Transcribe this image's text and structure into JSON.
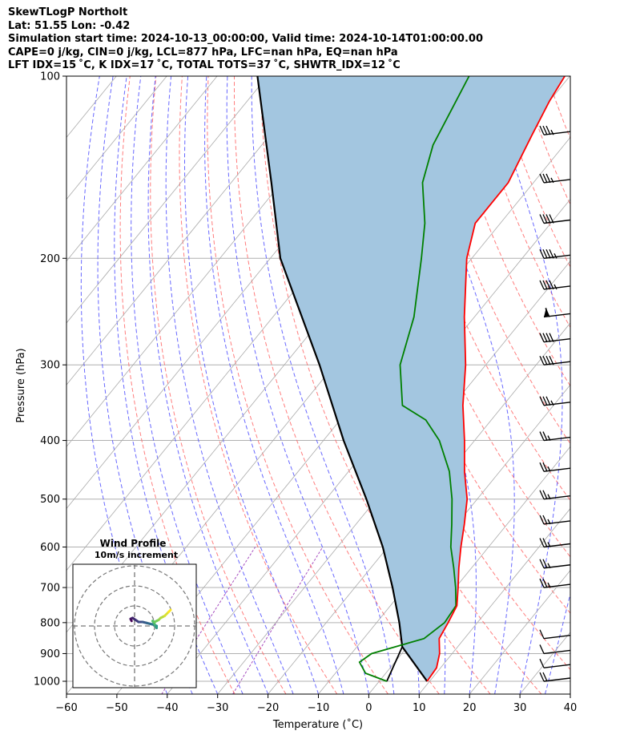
{
  "header": {
    "line1": "SkewTLogP Northolt",
    "line2": "Lat: 51.55   Lon: -0.42",
    "line3": "Simulation start time: 2024-10-13_00:00:00, Valid time: 2024-10-14T01:00:00.00",
    "line4": "CAPE=0 j/kg, CIN=0 j/kg, LCL=877 hPa, LFC=nan hPa, EQ=nan hPa",
    "line5": "LFT IDX=15 ˚C, K IDX=17 ˚C, TOTAL TOTS=37 ˚C, SHWTR_IDX=12 ˚C"
  },
  "colors": {
    "temperature": "#ff0000",
    "dewpoint": "#008000",
    "parcel": "#000000",
    "cape_fill": "#a3c6e0",
    "dry_adiabat": "#ff6666",
    "moist_adiabat": "#4d4dff",
    "mixing_ratio": "#a64dbf",
    "isotherm": "#aaaaaa",
    "wind_barb": "#000000"
  },
  "chart_data": {
    "type": "skewt-logp",
    "xlabel": "Temperature (˚C)",
    "ylabel": "Pressure (hPa)",
    "xlim": [
      -60,
      40
    ],
    "ylim_hpa": [
      1050,
      100
    ],
    "x_ticks": [
      "−60",
      "−50",
      "−40",
      "−30",
      "−20",
      "−10",
      "0",
      "10",
      "20",
      "30",
      "40"
    ],
    "y_ticks": [
      "100",
      "200",
      "300",
      "400",
      "500",
      "600",
      "700",
      "800",
      "900",
      "1000"
    ],
    "grid": true,
    "temperature_profile": [
      {
        "p": 1000,
        "t": 9.5
      },
      {
        "p": 950,
        "t": 9.2
      },
      {
        "p": 900,
        "t": 7.5
      },
      {
        "p": 850,
        "t": 5.0
      },
      {
        "p": 800,
        "t": 4.2
      },
      {
        "p": 750,
        "t": 3.2
      },
      {
        "p": 700,
        "t": 0.5
      },
      {
        "p": 650,
        "t": -2.5
      },
      {
        "p": 600,
        "t": -5.5
      },
      {
        "p": 550,
        "t": -8.5
      },
      {
        "p": 500,
        "t": -12
      },
      {
        "p": 450,
        "t": -17
      },
      {
        "p": 400,
        "t": -22
      },
      {
        "p": 350,
        "t": -28
      },
      {
        "p": 300,
        "t": -34
      },
      {
        "p": 250,
        "t": -42
      },
      {
        "p": 200,
        "t": -51
      },
      {
        "p": 175,
        "t": -55
      },
      {
        "p": 150,
        "t": -55
      },
      {
        "p": 125,
        "t": -58
      },
      {
        "p": 110,
        "t": -60
      },
      {
        "p": 100,
        "t": -61
      }
    ],
    "dewpoint_profile": [
      {
        "p": 1000,
        "t": 1.5
      },
      {
        "p": 970,
        "t": -4
      },
      {
        "p": 930,
        "t": -7
      },
      {
        "p": 900,
        "t": -6
      },
      {
        "p": 850,
        "t": 2
      },
      {
        "p": 800,
        "t": 3.5
      },
      {
        "p": 750,
        "t": 3
      },
      {
        "p": 700,
        "t": 0
      },
      {
        "p": 650,
        "t": -3.5
      },
      {
        "p": 600,
        "t": -7.5
      },
      {
        "p": 550,
        "t": -11
      },
      {
        "p": 500,
        "t": -15
      },
      {
        "p": 450,
        "t": -20
      },
      {
        "p": 400,
        "t": -27
      },
      {
        "p": 370,
        "t": -33
      },
      {
        "p": 350,
        "t": -40
      },
      {
        "p": 300,
        "t": -47
      },
      {
        "p": 250,
        "t": -52
      },
      {
        "p": 200,
        "t": -60
      },
      {
        "p": 175,
        "t": -65
      },
      {
        "p": 150,
        "t": -72
      },
      {
        "p": 130,
        "t": -76
      },
      {
        "p": 100,
        "t": -80
      }
    ],
    "parcel_profile": [
      {
        "p": 1000,
        "t": 9.5
      },
      {
        "p": 877,
        "t": -1
      },
      {
        "p": 800,
        "t": -5.5
      },
      {
        "p": 700,
        "t": -12.5
      },
      {
        "p": 600,
        "t": -21
      },
      {
        "p": 500,
        "t": -32
      },
      {
        "p": 400,
        "t": -46
      },
      {
        "p": 300,
        "t": -63
      },
      {
        "p": 200,
        "t": -88
      },
      {
        "p": 150,
        "t": -102
      },
      {
        "p": 100,
        "t": -122
      }
    ],
    "dry_lcl_path": [
      {
        "p": 1000,
        "t": 1.5
      },
      {
        "p": 877,
        "t": -1
      }
    ],
    "wind_barbs": [
      {
        "p": 1000,
        "speed_kt": 20
      },
      {
        "p": 950,
        "speed_kt": 10
      },
      {
        "p": 900,
        "speed_kt": 10
      },
      {
        "p": 850,
        "speed_kt": 10
      },
      {
        "p": 700,
        "speed_kt": 25
      },
      {
        "p": 650,
        "speed_kt": 25
      },
      {
        "p": 600,
        "speed_kt": 25
      },
      {
        "p": 550,
        "speed_kt": 25
      },
      {
        "p": 500,
        "speed_kt": 25
      },
      {
        "p": 450,
        "speed_kt": 25
      },
      {
        "p": 400,
        "speed_kt": 25
      },
      {
        "p": 350,
        "speed_kt": 35
      },
      {
        "p": 300,
        "speed_kt": 40
      },
      {
        "p": 275,
        "speed_kt": 40
      },
      {
        "p": 250,
        "speed_kt": 60
      },
      {
        "p": 225,
        "speed_kt": 45
      },
      {
        "p": 200,
        "speed_kt": 45
      },
      {
        "p": 175,
        "speed_kt": 40
      },
      {
        "p": 150,
        "speed_kt": 35
      },
      {
        "p": 125,
        "speed_kt": 35
      }
    ],
    "hodograph": {
      "title": "Wind Profile",
      "subtitle": "10m/s increment",
      "rings": [
        10,
        20,
        30
      ],
      "u": [
        -1.5,
        -2,
        -1,
        0.5,
        2,
        4,
        6,
        8,
        10,
        11,
        11,
        10,
        10,
        9,
        10,
        12,
        13,
        15,
        17,
        18
      ],
      "v": [
        2.5,
        3.5,
        4,
        3,
        2,
        2,
        1.5,
        1,
        0.5,
        0,
        -1,
        0.5,
        1,
        2.5,
        2,
        3,
        4,
        5,
        7,
        8
      ]
    }
  }
}
